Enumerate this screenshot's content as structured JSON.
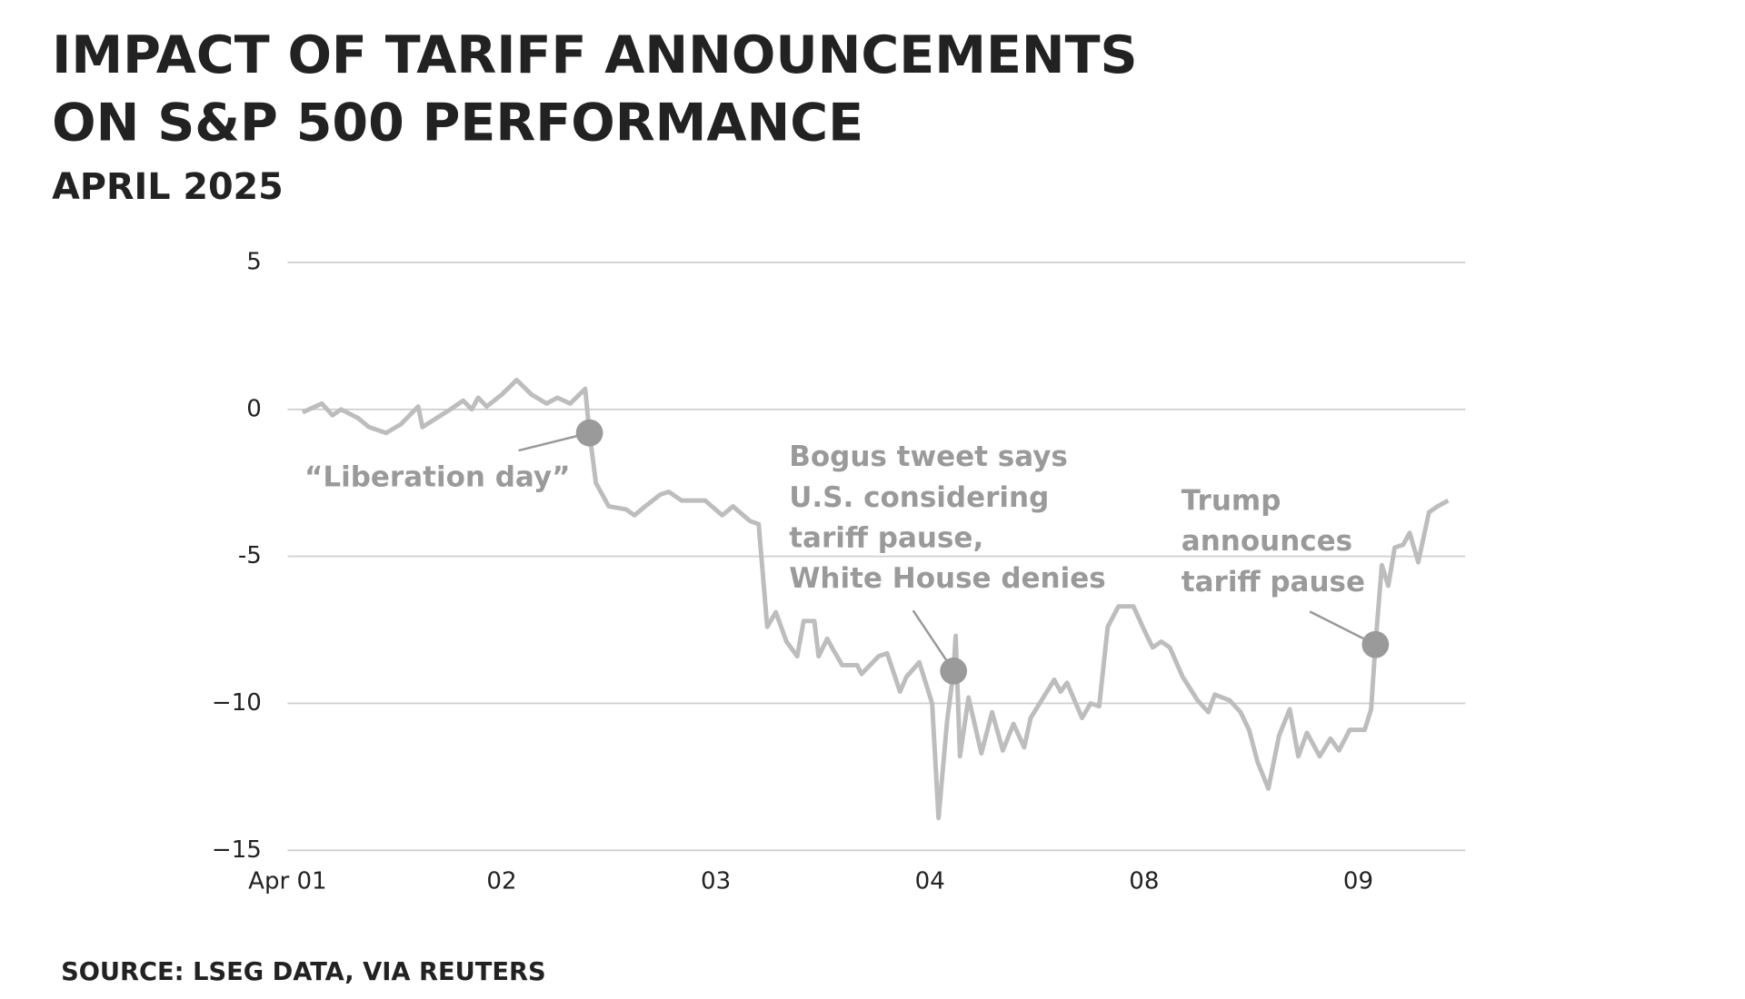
{
  "chart_data": {
    "type": "line",
    "title": [
      "IMPACT OF TARIFF ANNOUNCEMENTS",
      "ON S&P 500 PERFORMANCE"
    ],
    "subtitle": "APRIL 2025",
    "source": "SOURCE: LSEG DATA, VIA REUTERS",
    "color": "#bdbdbd",
    "grid": true,
    "xlim": [
      0,
      5.5
    ],
    "xticks": [
      {
        "value": 0,
        "label": "Apr 01"
      },
      {
        "value": 1,
        "label": "02"
      },
      {
        "value": 2,
        "label": "03"
      },
      {
        "value": 3,
        "label": "04"
      },
      {
        "value": 4,
        "label": "08"
      },
      {
        "value": 5,
        "label": "09"
      }
    ],
    "ylim": [
      -15,
      5
    ],
    "yticks": [
      5,
      0,
      -5,
      {
        "value": -10,
        "label": "−10"
      },
      {
        "value": -15,
        "label": "−15"
      }
    ],
    "x": [
      0.07,
      0.16,
      0.21,
      0.25,
      0.33,
      0.38,
      0.46,
      0.53,
      0.61,
      0.63,
      0.76,
      0.82,
      0.86,
      0.89,
      0.93,
      1.0,
      1.07,
      1.14,
      1.21,
      1.26,
      1.32,
      1.39,
      1.41,
      1.44,
      1.5,
      1.58,
      1.62,
      1.67,
      1.74,
      1.78,
      1.84,
      1.95,
      2.03,
      2.08,
      2.16,
      2.2,
      2.24,
      2.28,
      2.33,
      2.38,
      2.41,
      2.46,
      2.48,
      2.52,
      2.55,
      2.59,
      2.66,
      2.68,
      2.76,
      2.8,
      2.86,
      2.89,
      2.95,
      3.01,
      3.04,
      3.08,
      3.11,
      3.12,
      3.14,
      3.18,
      3.24,
      3.29,
      3.34,
      3.39,
      3.44,
      3.47,
      3.58,
      3.61,
      3.64,
      3.71,
      3.75,
      3.79,
      3.83,
      3.88,
      3.95,
      4.0,
      4.04,
      4.08,
      4.12,
      4.18,
      4.25,
      4.3,
      4.33,
      4.4,
      4.45,
      4.49,
      4.53,
      4.58,
      4.63,
      4.68,
      4.72,
      4.76,
      4.82,
      4.87,
      4.91,
      4.96,
      5.03,
      5.06,
      5.08,
      5.11,
      5.14,
      5.17,
      5.21,
      5.24,
      5.28,
      5.33,
      5.37,
      5.42
    ],
    "values": [
      -0.1,
      0.2,
      -0.2,
      0,
      -0.3,
      -0.6,
      -0.8,
      -0.5,
      0.1,
      -0.6,
      0,
      0.3,
      0,
      0.4,
      0.1,
      0.5,
      1.0,
      0.5,
      0.2,
      0.4,
      0.2,
      0.7,
      -0.8,
      -2.5,
      -3.3,
      -3.4,
      -3.6,
      -3.3,
      -2.9,
      -2.8,
      -3.1,
      -3.1,
      -3.6,
      -3.3,
      -3.8,
      -3.9,
      -7.4,
      -6.9,
      -7.9,
      -8.4,
      -7.2,
      -7.2,
      -8.4,
      -7.8,
      -8.2,
      -8.7,
      -8.7,
      -9.0,
      -8.4,
      -8.3,
      -9.6,
      -9.1,
      -8.6,
      -10.0,
      -13.9,
      -10.6,
      -8.9,
      -7.7,
      -11.8,
      -9.8,
      -11.7,
      -10.3,
      -11.6,
      -10.7,
      -11.5,
      -10.5,
      -9.2,
      -9.6,
      -9.3,
      -10.5,
      -10.0,
      -10.1,
      -7.4,
      -6.7,
      -6.7,
      -7.5,
      -8.1,
      -7.9,
      -8.1,
      -9.1,
      -9.9,
      -10.3,
      -9.7,
      -9.9,
      -10.3,
      -10.9,
      -12.0,
      -12.9,
      -11.1,
      -10.2,
      -11.8,
      -11.0,
      -11.8,
      -11.2,
      -11.6,
      -10.9,
      -10.9,
      -10.2,
      -8.0,
      -5.3,
      -6.0,
      -4.7,
      -4.6,
      -4.2,
      -5.2,
      -3.5,
      -3.3,
      -3.1
    ],
    "annotations": [
      {
        "lines": [
          "“Liberation day”"
        ],
        "x": 1.41,
        "y": -0.8
      },
      {
        "lines": [
          "Bogus tweet says",
          "U.S. considering",
          "tariff pause,",
          "White House denies"
        ],
        "x": 3.11,
        "y": -8.9
      },
      {
        "lines": [
          "Trump",
          "announces",
          "tariff pause"
        ],
        "x": 5.08,
        "y": -8.0
      }
    ]
  }
}
